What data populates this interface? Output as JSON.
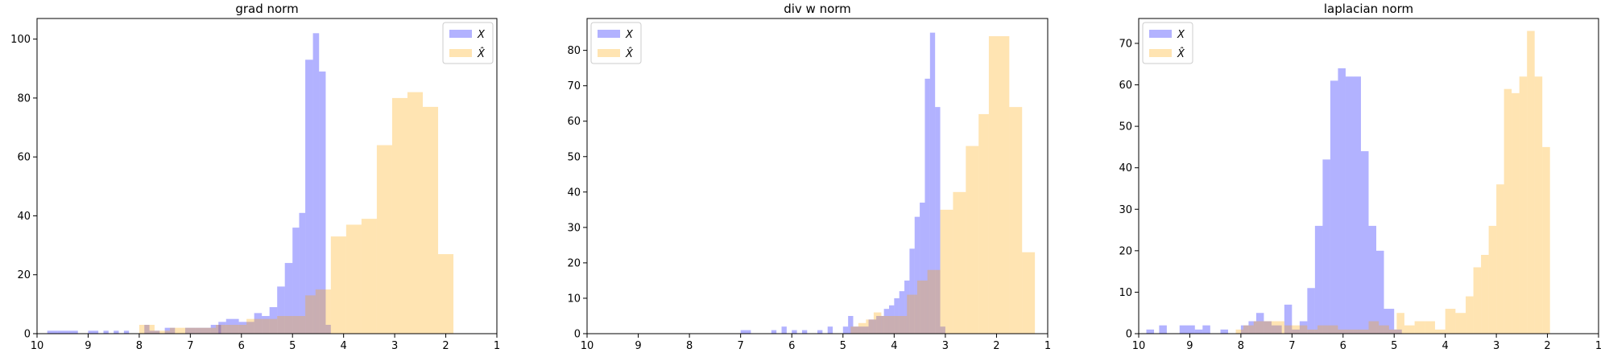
{
  "figure": {
    "background": "#ffffff"
  },
  "colors": {
    "X": "#0000ff",
    "X_hat": "#ffa500",
    "alpha": 0.3
  },
  "chart_data": [
    {
      "type": "histogram",
      "title": "grad norm",
      "xlim": [
        10,
        1
      ],
      "ylim": [
        0,
        107
      ],
      "xticks": [
        10,
        9,
        8,
        7,
        6,
        5,
        4,
        3,
        2,
        1
      ],
      "yticks": [
        0,
        20,
        40,
        60,
        80,
        100
      ],
      "legend": {
        "location": "upper right",
        "labels": [
          "X",
          "X̂"
        ]
      },
      "series": [
        {
          "name": "X",
          "bins": [
            [
              9.8,
              9.6,
              1
            ],
            [
              9.6,
              9.4,
              1
            ],
            [
              9.4,
              9.2,
              1
            ],
            [
              9.0,
              8.8,
              1
            ],
            [
              8.7,
              8.6,
              1
            ],
            [
              8.5,
              8.4,
              1
            ],
            [
              8.3,
              8.2,
              1
            ],
            [
              7.9,
              7.8,
              3
            ],
            [
              7.8,
              7.6,
              1
            ],
            [
              7.5,
              7.3,
              2
            ],
            [
              7.1,
              6.9,
              2
            ],
            [
              6.9,
              6.6,
              2
            ],
            [
              6.6,
              6.4,
              3
            ],
            [
              6.45,
              6.3,
              4
            ],
            [
              6.3,
              6.05,
              5
            ],
            [
              6.05,
              5.75,
              4
            ],
            [
              5.75,
              5.6,
              7
            ],
            [
              5.6,
              5.45,
              6
            ],
            [
              5.45,
              5.3,
              9
            ],
            [
              5.3,
              5.15,
              16
            ],
            [
              5.15,
              5.0,
              24
            ],
            [
              5.0,
              4.87,
              36
            ],
            [
              4.87,
              4.75,
              41
            ],
            [
              4.75,
              4.6,
              93
            ],
            [
              4.6,
              4.48,
              102
            ],
            [
              4.48,
              4.35,
              89
            ],
            [
              4.35,
              4.25,
              3
            ]
          ]
        },
        {
          "name": "X̂",
          "bins": [
            [
              8.0,
              7.7,
              3
            ],
            [
              7.7,
              7.4,
              1
            ],
            [
              7.4,
              7.1,
              2
            ],
            [
              7.1,
              6.8,
              2
            ],
            [
              6.8,
              6.5,
              2
            ],
            [
              6.5,
              6.2,
              3
            ],
            [
              6.2,
              5.9,
              3
            ],
            [
              5.9,
              5.6,
              5
            ],
            [
              5.6,
              5.3,
              5
            ],
            [
              5.3,
              5.0,
              6
            ],
            [
              5.0,
              4.75,
              6
            ],
            [
              4.75,
              4.55,
              13
            ],
            [
              4.55,
              4.25,
              15
            ],
            [
              4.25,
              3.95,
              33
            ],
            [
              3.95,
              3.65,
              37
            ],
            [
              3.65,
              3.35,
              39
            ],
            [
              3.35,
              3.05,
              64
            ],
            [
              3.05,
              2.75,
              80
            ],
            [
              2.75,
              2.45,
              82
            ],
            [
              2.45,
              2.15,
              77
            ],
            [
              2.15,
              1.85,
              27
            ]
          ]
        }
      ]
    },
    {
      "type": "histogram",
      "title": "div w norm",
      "xlim": [
        10,
        1
      ],
      "ylim": [
        0,
        89
      ],
      "xticks": [
        10,
        9,
        8,
        7,
        6,
        5,
        4,
        3,
        2,
        1
      ],
      "yticks": [
        0,
        10,
        20,
        30,
        40,
        50,
        60,
        70,
        80
      ],
      "legend": {
        "location": "upper left",
        "labels": [
          "X",
          "X̂"
        ]
      },
      "series": [
        {
          "name": "X",
          "bins": [
            [
              7.0,
              6.9,
              1
            ],
            [
              6.9,
              6.8,
              1
            ],
            [
              6.4,
              6.3,
              1
            ],
            [
              6.2,
              6.1,
              2
            ],
            [
              6.0,
              5.9,
              1
            ],
            [
              5.8,
              5.7,
              1
            ],
            [
              5.5,
              5.4,
              1
            ],
            [
              5.3,
              5.2,
              2
            ],
            [
              5.0,
              4.9,
              2
            ],
            [
              4.9,
              4.8,
              5
            ],
            [
              4.8,
              4.65,
              2
            ],
            [
              4.65,
              4.5,
              2
            ],
            [
              4.5,
              4.35,
              4
            ],
            [
              4.35,
              4.2,
              5
            ],
            [
              4.2,
              4.1,
              7
            ],
            [
              4.1,
              4.0,
              8
            ],
            [
              4.0,
              3.9,
              10
            ],
            [
              3.9,
              3.8,
              12
            ],
            [
              3.8,
              3.7,
              15
            ],
            [
              3.7,
              3.6,
              24
            ],
            [
              3.6,
              3.5,
              33
            ],
            [
              3.5,
              3.4,
              37
            ],
            [
              3.4,
              3.3,
              72
            ],
            [
              3.3,
              3.2,
              85
            ],
            [
              3.2,
              3.1,
              64
            ],
            [
              3.1,
              3.0,
              2
            ]
          ]
        },
        {
          "name": "X̂",
          "bins": [
            [
              4.85,
              4.7,
              2
            ],
            [
              4.7,
              4.55,
              3
            ],
            [
              4.55,
              4.4,
              4
            ],
            [
              4.4,
              4.25,
              6
            ],
            [
              4.25,
              4.1,
              5
            ],
            [
              4.1,
              3.95,
              5
            ],
            [
              3.95,
              3.75,
              5
            ],
            [
              3.75,
              3.55,
              11
            ],
            [
              3.55,
              3.35,
              15
            ],
            [
              3.35,
              3.1,
              18
            ],
            [
              3.1,
              2.85,
              35
            ],
            [
              2.85,
              2.6,
              40
            ],
            [
              2.6,
              2.35,
              53
            ],
            [
              2.35,
              2.15,
              62
            ],
            [
              2.15,
              1.75,
              84
            ],
            [
              1.75,
              1.5,
              64
            ],
            [
              1.5,
              1.25,
              23
            ]
          ]
        }
      ]
    },
    {
      "type": "histogram",
      "title": "laplacian norm",
      "xlim": [
        10,
        1
      ],
      "ylim": [
        0,
        76
      ],
      "xticks": [
        10,
        9,
        8,
        7,
        6,
        5,
        4,
        3,
        2,
        1
      ],
      "yticks": [
        0,
        10,
        20,
        30,
        40,
        50,
        60,
        70
      ],
      "legend": {
        "location": "upper left",
        "labels": [
          "X",
          "X̂"
        ]
      },
      "series": [
        {
          "name": "X",
          "bins": [
            [
              9.85,
              9.7,
              1
            ],
            [
              9.6,
              9.45,
              2
            ],
            [
              9.2,
              8.9,
              2
            ],
            [
              8.9,
              8.75,
              1
            ],
            [
              8.75,
              8.6,
              2
            ],
            [
              8.4,
              8.25,
              1
            ],
            [
              8.0,
              7.85,
              2
            ],
            [
              7.85,
              7.7,
              3
            ],
            [
              7.7,
              7.55,
              5
            ],
            [
              7.55,
              7.4,
              3
            ],
            [
              7.4,
              7.2,
              2
            ],
            [
              7.15,
              7.0,
              7
            ],
            [
              7.0,
              6.85,
              1
            ],
            [
              6.85,
              6.7,
              3
            ],
            [
              6.7,
              6.55,
              11
            ],
            [
              6.55,
              6.4,
              26
            ],
            [
              6.4,
              6.25,
              42
            ],
            [
              6.25,
              6.1,
              61
            ],
            [
              6.1,
              5.95,
              64
            ],
            [
              5.95,
              5.8,
              62
            ],
            [
              5.8,
              5.65,
              62
            ],
            [
              5.65,
              5.5,
              44
            ],
            [
              5.5,
              5.35,
              26
            ],
            [
              5.35,
              5.2,
              20
            ],
            [
              5.2,
              5.0,
              6
            ],
            [
              5.0,
              4.85,
              1
            ]
          ]
        },
        {
          "name": "X̂",
          "bins": [
            [
              8.1,
              7.95,
              1
            ],
            [
              7.95,
              7.75,
              2
            ],
            [
              7.75,
              7.55,
              3
            ],
            [
              7.55,
              7.35,
              3
            ],
            [
              7.35,
              7.15,
              3
            ],
            [
              7.15,
              6.95,
              2
            ],
            [
              6.95,
              6.7,
              2
            ],
            [
              6.7,
              6.5,
              1
            ],
            [
              6.5,
              6.3,
              2
            ],
            [
              6.3,
              6.1,
              2
            ],
            [
              6.1,
              5.9,
              1
            ],
            [
              5.9,
              5.7,
              1
            ],
            [
              5.7,
              5.5,
              1
            ],
            [
              5.5,
              5.3,
              3
            ],
            [
              5.3,
              5.1,
              2
            ],
            [
              5.1,
              4.95,
              1
            ],
            [
              4.95,
              4.8,
              5
            ],
            [
              4.8,
              4.6,
              2
            ],
            [
              4.6,
              4.4,
              3
            ],
            [
              4.4,
              4.2,
              3
            ],
            [
              4.2,
              4.0,
              1
            ],
            [
              4.0,
              3.8,
              6
            ],
            [
              3.8,
              3.6,
              5
            ],
            [
              3.6,
              3.45,
              9
            ],
            [
              3.45,
              3.3,
              16
            ],
            [
              3.3,
              3.15,
              19
            ],
            [
              3.15,
              3.0,
              26
            ],
            [
              3.0,
              2.85,
              36
            ],
            [
              2.85,
              2.7,
              59
            ],
            [
              2.7,
              2.55,
              58
            ],
            [
              2.55,
              2.4,
              62
            ],
            [
              2.4,
              2.25,
              73
            ],
            [
              2.25,
              2.1,
              62
            ],
            [
              2.1,
              1.95,
              45
            ]
          ]
        }
      ]
    }
  ]
}
